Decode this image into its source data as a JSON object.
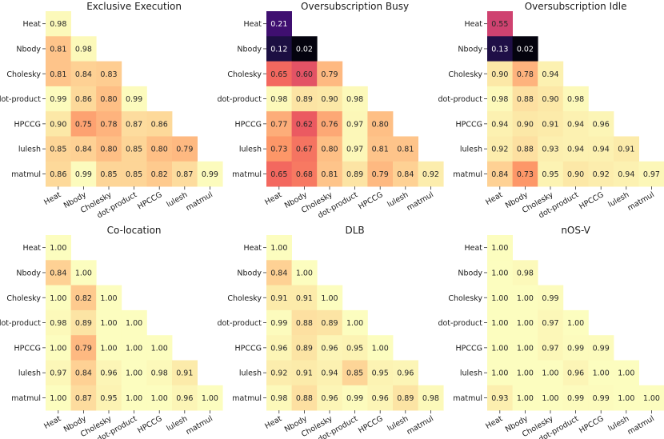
{
  "chart_data": [
    {
      "type": "heatmap",
      "title": "Exclusive Execution",
      "rows": [
        "Heat",
        "Nbody",
        "Cholesky",
        "dot-product",
        "HPCCG",
        "lulesh",
        "matmul"
      ],
      "cols": [
        "Heat",
        "Nbody",
        "Cholesky",
        "dot-product",
        "HPCCG",
        "lulesh",
        "matmul"
      ],
      "values": [
        [
          0.98
        ],
        [
          0.81,
          0.98
        ],
        [
          0.81,
          0.84,
          0.83
        ],
        [
          0.99,
          0.86,
          0.8,
          0.99
        ],
        [
          0.9,
          0.75,
          0.78,
          0.87,
          0.86
        ],
        [
          0.85,
          0.84,
          0.8,
          0.85,
          0.8,
          0.79
        ],
        [
          0.86,
          0.99,
          0.85,
          0.85,
          0.82,
          0.87,
          0.99
        ]
      ]
    },
    {
      "type": "heatmap",
      "title": "Oversubscription Busy",
      "rows": [
        "Heat",
        "Nbody",
        "Cholesky",
        "dot-product",
        "HPCCG",
        "lulesh",
        "matmul"
      ],
      "cols": [
        "Heat",
        "Nbody",
        "Cholesky",
        "dot-product",
        "HPCCG",
        "lulesh",
        "matmul"
      ],
      "values": [
        [
          0.21
        ],
        [
          0.12,
          0.02
        ],
        [
          0.65,
          0.6,
          0.79
        ],
        [
          0.98,
          0.89,
          0.9,
          0.98
        ],
        [
          0.77,
          0.62,
          0.76,
          0.97,
          0.8
        ],
        [
          0.73,
          0.67,
          0.8,
          0.97,
          0.81,
          0.81
        ],
        [
          0.65,
          0.68,
          0.81,
          0.89,
          0.79,
          0.84,
          0.92
        ]
      ]
    },
    {
      "type": "heatmap",
      "title": "Oversubscription Idle",
      "rows": [
        "Heat",
        "Nbody",
        "Cholesky",
        "dot-product",
        "HPCCG",
        "lulesh",
        "matmul"
      ],
      "cols": [
        "Heat",
        "Nbody",
        "Cholesky",
        "dot-product",
        "HPCCG",
        "lulesh",
        "matmul"
      ],
      "values": [
        [
          0.55
        ],
        [
          0.13,
          0.02
        ],
        [
          0.9,
          0.78,
          0.94
        ],
        [
          0.98,
          0.88,
          0.9,
          0.98
        ],
        [
          0.94,
          0.9,
          0.91,
          0.94,
          0.96
        ],
        [
          0.92,
          0.88,
          0.93,
          0.94,
          0.94,
          0.91
        ],
        [
          0.84,
          0.73,
          0.95,
          0.9,
          0.92,
          0.94,
          0.97
        ]
      ]
    },
    {
      "type": "heatmap",
      "title": "Co-location",
      "rows": [
        "Heat",
        "Nbody",
        "Cholesky",
        "dot-product",
        "HPCCG",
        "lulesh",
        "matmul"
      ],
      "cols": [
        "Heat",
        "Nbody",
        "Cholesky",
        "dot-product",
        "HPCCG",
        "lulesh",
        "matmul"
      ],
      "values": [
        [
          1.0
        ],
        [
          0.84,
          1.0
        ],
        [
          1.0,
          0.82,
          1.0
        ],
        [
          0.98,
          0.89,
          1.0,
          1.0
        ],
        [
          1.0,
          0.79,
          1.0,
          1.0,
          1.0
        ],
        [
          0.97,
          0.84,
          0.96,
          1.0,
          0.98,
          0.91
        ],
        [
          1.0,
          0.87,
          0.95,
          1.0,
          1.0,
          0.96,
          1.0
        ]
      ]
    },
    {
      "type": "heatmap",
      "title": "DLB",
      "rows": [
        "Heat",
        "Nbody",
        "Cholesky",
        "dot-product",
        "HPCCG",
        "lulesh",
        "matmul"
      ],
      "cols": [
        "Heat",
        "Nbody",
        "Cholesky",
        "dot-product",
        "HPCCG",
        "lulesh",
        "matmul"
      ],
      "values": [
        [
          1.0
        ],
        [
          0.84,
          1.0
        ],
        [
          0.91,
          0.91,
          1.0
        ],
        [
          0.99,
          0.88,
          0.89,
          1.0
        ],
        [
          0.96,
          0.89,
          0.96,
          0.95,
          1.0
        ],
        [
          0.92,
          0.91,
          0.94,
          0.85,
          0.95,
          0.96
        ],
        [
          0.98,
          0.88,
          0.96,
          0.99,
          0.96,
          0.89,
          0.98
        ]
      ]
    },
    {
      "type": "heatmap",
      "title": "nOS-V",
      "rows": [
        "Heat",
        "Nbody",
        "Cholesky",
        "dot-product",
        "HPCCG",
        "lulesh",
        "matmul"
      ],
      "cols": [
        "Heat",
        "Nbody",
        "Cholesky",
        "dot-product",
        "HPCCG",
        "lulesh",
        "matmul"
      ],
      "values": [
        [
          1.0
        ],
        [
          1.0,
          0.98
        ],
        [
          1.0,
          1.0,
          0.99
        ],
        [
          1.0,
          1.0,
          0.97,
          1.0
        ],
        [
          1.0,
          1.0,
          0.97,
          0.99,
          0.99
        ],
        [
          1.0,
          1.0,
          1.0,
          0.96,
          1.0,
          1.0
        ],
        [
          0.93,
          1.0,
          1.0,
          0.99,
          0.99,
          1.0,
          1.0
        ]
      ]
    }
  ],
  "colormap": "magma",
  "value_range": [
    0,
    1
  ],
  "grid": false
}
